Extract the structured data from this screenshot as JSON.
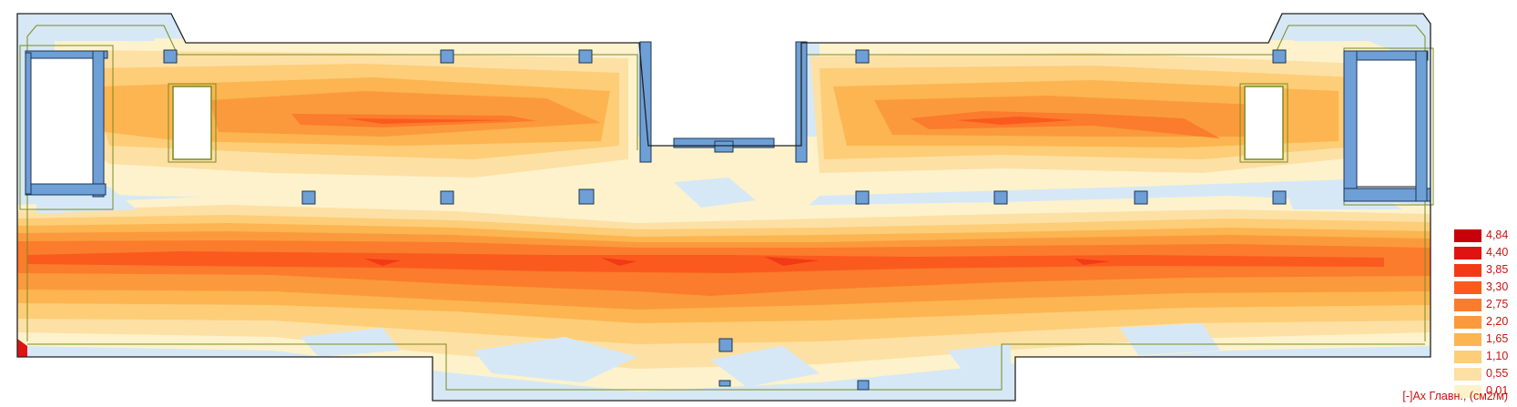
{
  "legend": {
    "title": "[-]Ах Главн., (см2/м)",
    "entries": [
      {
        "label": "4,84",
        "color": "#c8000c"
      },
      {
        "label": "4,40",
        "color": "#df1410"
      },
      {
        "label": "3,85",
        "color": "#f23a16"
      },
      {
        "label": "3,30",
        "color": "#fb5a1e"
      },
      {
        "label": "2,75",
        "color": "#fb7c2c"
      },
      {
        "label": "2,20",
        "color": "#fb9a3c"
      },
      {
        "label": "1,65",
        "color": "#fcb550"
      },
      {
        "label": "1,10",
        "color": "#fdcd78"
      },
      {
        "label": "0,55",
        "color": "#fde0a4"
      },
      {
        "label": "0,01",
        "color": "#fdf2cc"
      }
    ]
  },
  "colors": {
    "background_zone": "#d6e8f6",
    "column": "#6e9fd6",
    "outline": "#222222",
    "grid_line": "#7a8a20"
  }
}
